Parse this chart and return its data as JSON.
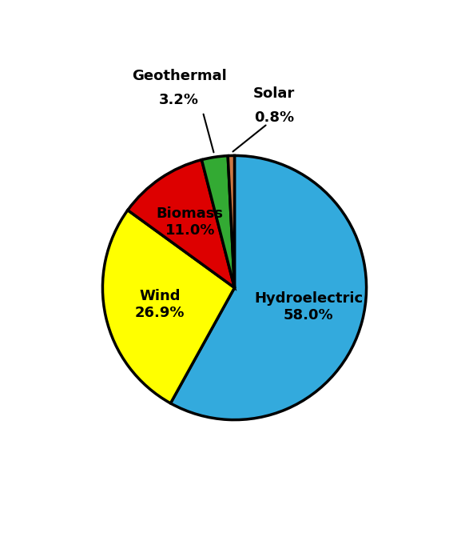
{
  "labels": [
    "Hydroelectric",
    "Wind",
    "Biomass",
    "Geothermal",
    "Solar"
  ],
  "values": [
    58.0,
    26.9,
    11.0,
    3.2,
    0.8
  ],
  "colors": [
    "#33AADD",
    "#FFFF00",
    "#DD0000",
    "#33AA33",
    "#CC7744"
  ],
  "startangle": 90,
  "label_colors": [
    "#000000",
    "#000000",
    "#000000",
    "#000000",
    "#000000"
  ],
  "edge_color": "#000000",
  "edge_width": 2.5,
  "background_color": "#ffffff",
  "figsize": [
    5.87,
    6.86
  ],
  "dpi": 100,
  "font_size": 13,
  "font_weight": "bold",
  "hydro_label": "Hydroelectric\n58.0%",
  "wind_label": "Wind\n26.9%",
  "biomass_label": "Biomass\n11.0%",
  "geo_label_line1": "Geothermal",
  "geo_label_line2": "3.2%",
  "solar_label_line1": "Solar",
  "solar_label_line2": "0.8%"
}
